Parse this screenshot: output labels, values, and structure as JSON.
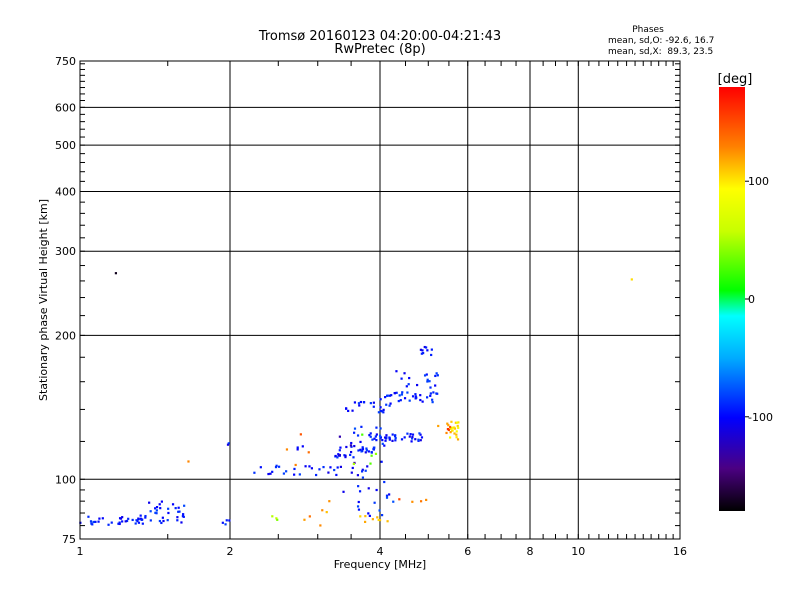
{
  "chart_data": {
    "type": "scatter",
    "title": "Tromsø 20160123 04:20:00-04:21:43",
    "subtitle": "RwPretec (8p)",
    "xlabel": "Frequency [MHz]",
    "ylabel": "Stationary phase Virtual Height [km]",
    "x_scale": "log2",
    "y_scale": "log",
    "xlim": [
      1,
      16
    ],
    "ylim": [
      75,
      750
    ],
    "x_ticks": [
      1,
      2,
      4,
      6,
      8,
      10,
      16
    ],
    "x_tick_labels": [
      "1",
      "2",
      "4",
      "6",
      "8",
      "10",
      "16"
    ],
    "y_ticks": [
      75,
      100,
      200,
      300,
      400,
      500,
      600,
      750
    ],
    "y_tick_labels": [
      "75",
      "100",
      "200",
      "300",
      "400",
      "500",
      "600",
      "750"
    ],
    "grid": true,
    "phase_info": {
      "heading": "Phases",
      "line1": "mean, sd,O: -92.6, 16.7",
      "line2": "mean, sd,X:  89.3, 23.5"
    },
    "colorbar": {
      "label": "[deg]",
      "range": [
        -180,
        180
      ],
      "ticks": [
        100,
        0,
        -100
      ],
      "tick_labels": [
        "100",
        "0",
        "-100"
      ]
    },
    "series": [
      {
        "clusters": [
          {
            "x": [
              1.0,
              1.25
            ],
            "y": [
              80,
              84
            ],
            "phase": -95,
            "n": 22
          },
          {
            "x": [
              1.26,
              1.34
            ],
            "y": [
              80,
              84
            ],
            "phase": -95,
            "n": 12
          },
          {
            "x": [
              1.35,
              1.68
            ],
            "y": [
              81,
              90
            ],
            "phase": -95,
            "n": 32
          },
          {
            "x": [
              1.9,
              2.0
            ],
            "y": [
              79,
              84
            ],
            "phase": -95,
            "n": 4
          },
          {
            "x": [
              2.2,
              3.3
            ],
            "y": [
              102,
              107
            ],
            "phase": -95,
            "n": 24
          },
          {
            "x": [
              3.25,
              3.9
            ],
            "y": [
              111,
              118
            ],
            "phase": -95,
            "n": 34
          },
          {
            "x": [
              3.8,
              4.9
            ],
            "y": [
              120,
              125
            ],
            "phase": -95,
            "n": 38
          },
          {
            "x": [
              3.4,
              4.2
            ],
            "y": [
              138,
              146
            ],
            "phase": -95,
            "n": 22
          },
          {
            "x": [
              4.0,
              5.2
            ],
            "y": [
              145,
              152
            ],
            "phase": -95,
            "n": 26
          },
          {
            "x": [
              4.2,
              5.3
            ],
            "y": [
              150,
              170
            ],
            "phase": -95,
            "n": 24
          },
          {
            "x": [
              4.8,
              5.1
            ],
            "y": [
              180,
              193
            ],
            "phase": -95,
            "n": 9
          },
          {
            "x": [
              3.3,
              4.0
            ],
            "y": [
              94,
              108
            ],
            "phase": -95,
            "n": 14
          },
          {
            "x": [
              3.5,
              4.1
            ],
            "y": [
              119,
              130
            ],
            "phase": -90,
            "n": 10
          },
          {
            "x": [
              4.0,
              4.2
            ],
            "y": [
              81,
              160
            ],
            "phase": -95,
            "n": 8
          },
          {
            "x": [
              3.6,
              4.3
            ],
            "y": [
              82,
              92
            ],
            "phase": -90,
            "n": 10
          },
          {
            "x": [
              1.95,
              2.0
            ],
            "y": [
              117,
              120
            ],
            "phase": -95,
            "n": 2
          },
          {
            "x": [
              2.7,
              3.0
            ],
            "y": [
              115,
              118
            ],
            "phase": -95,
            "n": 3
          },
          {
            "x": [
              3.3,
              3.6
            ],
            "y": [
              108,
              125
            ],
            "phase": -120,
            "n": 4
          },
          {
            "x": [
              1.18,
              1.18
            ],
            "y": [
              270,
              270
            ],
            "phase": -170,
            "n": 1
          }
        ]
      },
      {
        "clusters": [
          {
            "x": [
              5.5,
              5.75
            ],
            "y": [
              122,
              132
            ],
            "phase": 100,
            "n": 18
          },
          {
            "x": [
              5.2,
              5.75
            ],
            "y": [
              118,
              136
            ],
            "phase": 115,
            "n": 6
          },
          {
            "x": [
              2.8,
              3.2
            ],
            "y": [
              80,
              92
            ],
            "phase": 125,
            "n": 6
          },
          {
            "x": [
              3.6,
              4.3
            ],
            "y": [
              80,
              84
            ],
            "phase": 110,
            "n": 8
          },
          {
            "x": [
              4.3,
              5.0
            ],
            "y": [
              88,
              96
            ],
            "phase": 140,
            "n": 4
          },
          {
            "x": [
              2.35,
              2.5
            ],
            "y": [
              81,
              84
            ],
            "phase": 50,
            "n": 3
          },
          {
            "x": [
              3.5,
              4.0
            ],
            "y": [
              102,
              128
            ],
            "phase": 40,
            "n": 5
          },
          {
            "x": [
              2.6,
              2.9
            ],
            "y": [
              106,
              125
            ],
            "phase": 140,
            "n": 4
          },
          {
            "x": [
              1.65,
              1.65
            ],
            "y": [
              109,
              109
            ],
            "phase": 140,
            "n": 1
          },
          {
            "x": [
              12.8,
              12.8
            ],
            "y": [
              262,
              262
            ],
            "phase": 110,
            "n": 1
          },
          {
            "x": [
              5.45,
              5.55
            ],
            "y": [
              126,
              130
            ],
            "phase": 160,
            "n": 3
          }
        ]
      }
    ]
  }
}
